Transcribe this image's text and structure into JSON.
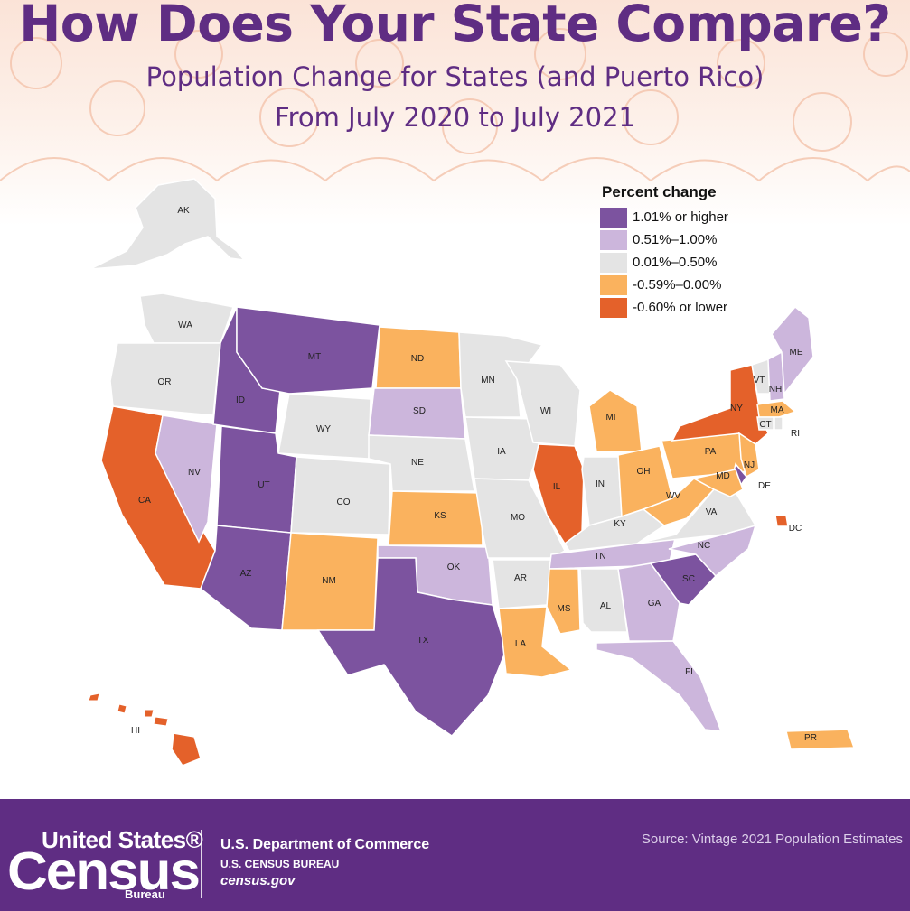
{
  "header": {
    "title": "How Does Your State Compare?",
    "subtitle_line1": "Population Change for States (and Puerto Rico)",
    "subtitle_line2": "From July 2020 to July 2021"
  },
  "legend": {
    "title": "Percent change",
    "items": [
      {
        "key": "c1",
        "label": "1.01% or higher",
        "color": "#7c539f"
      },
      {
        "key": "c2",
        "label": "0.51%–1.00%",
        "color": "#ccb6dc"
      },
      {
        "key": "c3",
        "label": "0.01%–0.50%",
        "color": "#e4e4e4"
      },
      {
        "key": "c4",
        "label": "-0.59%–0.00%",
        "color": "#fab25e"
      },
      {
        "key": "c5",
        "label": "-0.60% or lower",
        "color": "#e4612a"
      }
    ]
  },
  "states": [
    {
      "abbr": "AK",
      "cat": "c3"
    },
    {
      "abbr": "WA",
      "cat": "c3"
    },
    {
      "abbr": "OR",
      "cat": "c3"
    },
    {
      "abbr": "CA",
      "cat": "c5"
    },
    {
      "abbr": "NV",
      "cat": "c2"
    },
    {
      "abbr": "ID",
      "cat": "c1"
    },
    {
      "abbr": "MT",
      "cat": "c1"
    },
    {
      "abbr": "WY",
      "cat": "c3"
    },
    {
      "abbr": "UT",
      "cat": "c1"
    },
    {
      "abbr": "AZ",
      "cat": "c1"
    },
    {
      "abbr": "CO",
      "cat": "c3"
    },
    {
      "abbr": "NM",
      "cat": "c4"
    },
    {
      "abbr": "ND",
      "cat": "c4"
    },
    {
      "abbr": "SD",
      "cat": "c2"
    },
    {
      "abbr": "NE",
      "cat": "c3"
    },
    {
      "abbr": "KS",
      "cat": "c4"
    },
    {
      "abbr": "OK",
      "cat": "c2"
    },
    {
      "abbr": "TX",
      "cat": "c1"
    },
    {
      "abbr": "MN",
      "cat": "c3"
    },
    {
      "abbr": "IA",
      "cat": "c3"
    },
    {
      "abbr": "MO",
      "cat": "c3"
    },
    {
      "abbr": "AR",
      "cat": "c3"
    },
    {
      "abbr": "LA",
      "cat": "c4"
    },
    {
      "abbr": "WI",
      "cat": "c3"
    },
    {
      "abbr": "IL",
      "cat": "c5"
    },
    {
      "abbr": "MI",
      "cat": "c4"
    },
    {
      "abbr": "IN",
      "cat": "c3"
    },
    {
      "abbr": "OH",
      "cat": "c4"
    },
    {
      "abbr": "KY",
      "cat": "c3"
    },
    {
      "abbr": "TN",
      "cat": "c2"
    },
    {
      "abbr": "MS",
      "cat": "c4"
    },
    {
      "abbr": "AL",
      "cat": "c3"
    },
    {
      "abbr": "GA",
      "cat": "c2"
    },
    {
      "abbr": "FL",
      "cat": "c2"
    },
    {
      "abbr": "SC",
      "cat": "c1"
    },
    {
      "abbr": "NC",
      "cat": "c2"
    },
    {
      "abbr": "VA",
      "cat": "c3"
    },
    {
      "abbr": "WV",
      "cat": "c4"
    },
    {
      "abbr": "PA",
      "cat": "c4"
    },
    {
      "abbr": "NY",
      "cat": "c5"
    },
    {
      "abbr": "VT",
      "cat": "c3"
    },
    {
      "abbr": "NH",
      "cat": "c2"
    },
    {
      "abbr": "ME",
      "cat": "c2"
    },
    {
      "abbr": "MA",
      "cat": "c4"
    },
    {
      "abbr": "CT",
      "cat": "c3"
    },
    {
      "abbr": "RI",
      "cat": "c3"
    },
    {
      "abbr": "NJ",
      "cat": "c4"
    },
    {
      "abbr": "DE",
      "cat": "c1"
    },
    {
      "abbr": "MD",
      "cat": "c4"
    },
    {
      "abbr": "DC",
      "cat": "c5"
    },
    {
      "abbr": "HI",
      "cat": "c5"
    },
    {
      "abbr": "PR",
      "cat": "c4"
    }
  ],
  "footer": {
    "logo_top": "United States®",
    "logo_main": "Census",
    "logo_bureau": "Bureau",
    "dept_line1": "U.S. Department of Commerce",
    "dept_line2": "U.S. CENSUS BUREAU",
    "dept_line3": "census.gov",
    "source": "Source: Vintage 2021 Population Estimates"
  }
}
